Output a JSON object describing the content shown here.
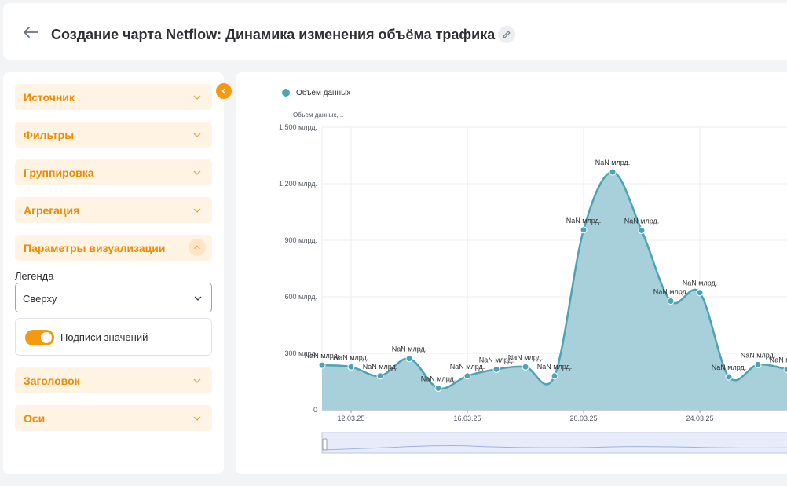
{
  "header": {
    "title": "Создание чарта Netflow: Динамика изменения объёма трафика"
  },
  "sidebar": {
    "sections_top": [
      {
        "label": "Источник"
      },
      {
        "label": "Фильтры"
      },
      {
        "label": "Группировка"
      },
      {
        "label": "Агрегация"
      }
    ],
    "visual_params": {
      "label": "Параметры визуализации",
      "legend_label": "Легенда",
      "legend_value": "Сверху",
      "value_labels_toggle": "Подписи значений",
      "value_labels_on": true
    },
    "sections_bottom": [
      {
        "label": "Заголовок"
      },
      {
        "label": "Оси"
      }
    ]
  },
  "colors": {
    "accent": "#f08a00",
    "series": "#4ba3b5",
    "area": "#a8d0db"
  },
  "chart_data": {
    "type": "area",
    "legend_position": "top-left",
    "ylabel": "Объем данных,...",
    "ylim": [
      0,
      1500
    ],
    "y_ticks": [
      {
        "value": 0,
        "label": "0"
      },
      {
        "value": 300,
        "label": "300 млрд."
      },
      {
        "value": 600,
        "label": "600 млрд."
      },
      {
        "value": 900,
        "label": "900 млрд."
      },
      {
        "value": 1200,
        "label": "1,200 млрд."
      },
      {
        "value": 1500,
        "label": "1,500 млрд."
      }
    ],
    "x_ticks": [
      "12.03.25",
      "16.03.25",
      "20.03.25",
      "24.03.25"
    ],
    "x_tick_index": [
      1,
      5,
      9,
      13
    ],
    "grid": true,
    "series": [
      {
        "name": "Объём данных",
        "point_label": "NaN млрд.",
        "values": [
          237,
          228,
          180,
          272,
          115,
          180,
          215,
          228,
          180,
          955,
          1262,
          952,
          577,
          622,
          175,
          240,
          215
        ]
      }
    ]
  }
}
